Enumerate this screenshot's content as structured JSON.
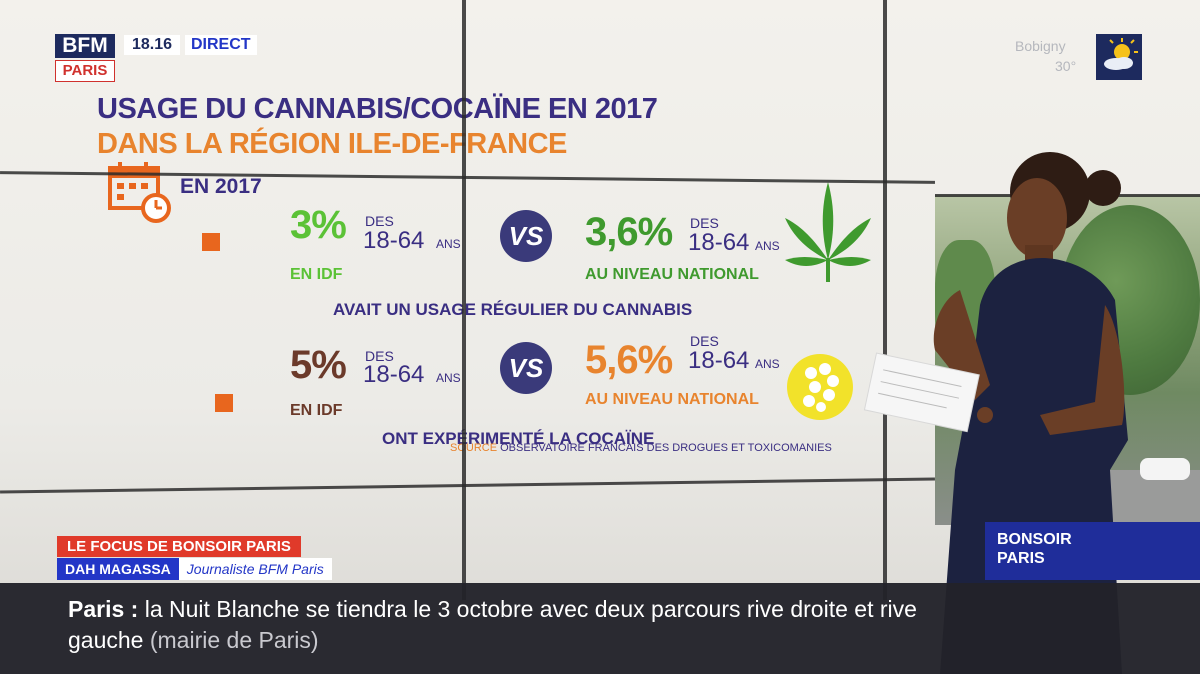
{
  "overlay": {
    "logo_top": "BFM",
    "logo_bottom": "PARIS",
    "time": "18.16",
    "live": "DIRECT",
    "weather_city": "Bobigny",
    "weather_temp": "30°",
    "weather_icon": "sun-cloud-icon"
  },
  "graphic": {
    "title_line1": "USAGE DU CANNABIS/COCAÏNE EN 2017",
    "title_line2": "DANS LA RÉGION ILE-DE-FRANCE",
    "date_label": "EN 2017",
    "cannabis": {
      "idf_pct": "3%",
      "idf_des": "DES",
      "idf_age": "18-64",
      "idf_ans": "ANS",
      "idf_label": "EN IDF",
      "vs": "VS",
      "nat_pct": "3,6%",
      "nat_des": "DES",
      "nat_age": "18-64",
      "nat_ans": "ANS",
      "nat_label": "AU NIVEAU NATIONAL",
      "caption": "AVAIT UN USAGE RÉGULIER DU CANNABIS",
      "icon": "cannabis-leaf-icon"
    },
    "cocaine": {
      "idf_pct": "5%",
      "idf_des": "DES",
      "idf_age": "18-64",
      "idf_ans": "ANS",
      "idf_label": "EN IDF",
      "vs": "VS",
      "nat_pct": "5,6%",
      "nat_des": "DES",
      "nat_age": "18-64",
      "nat_ans": "ANS",
      "nat_label": "AU NIVEAU NATIONAL",
      "caption": "ONT EXPÉRIMENTÉ LA COCAÏNE",
      "icon": "cocaine-pill-icon"
    },
    "source_label": "SOURCE",
    "source_text": "OBSERVATOIRE FRANCAIS DES DROGUES ET TOXICOMANIES"
  },
  "lower_third": {
    "segment": "LE FOCUS DE BONSOIR PARIS",
    "name": "DAH MAGASSA",
    "role": "Journaliste BFM Paris",
    "show_line1": "BONSOIR",
    "show_line2": "PARIS"
  },
  "ticker": {
    "city": "Paris",
    "separator": ":",
    "headline": "la Nuit Blanche se tiendra le 3 octobre avec deux parcours rive droite et rive gauche",
    "source": "(mairie de Paris)"
  },
  "colors": {
    "navy": "#3a2e82",
    "orange": "#e8842e",
    "green": "#5bc236",
    "brown": "#6b3a2a",
    "bfm_blue": "#2336c7",
    "red": "#e03a2a"
  }
}
